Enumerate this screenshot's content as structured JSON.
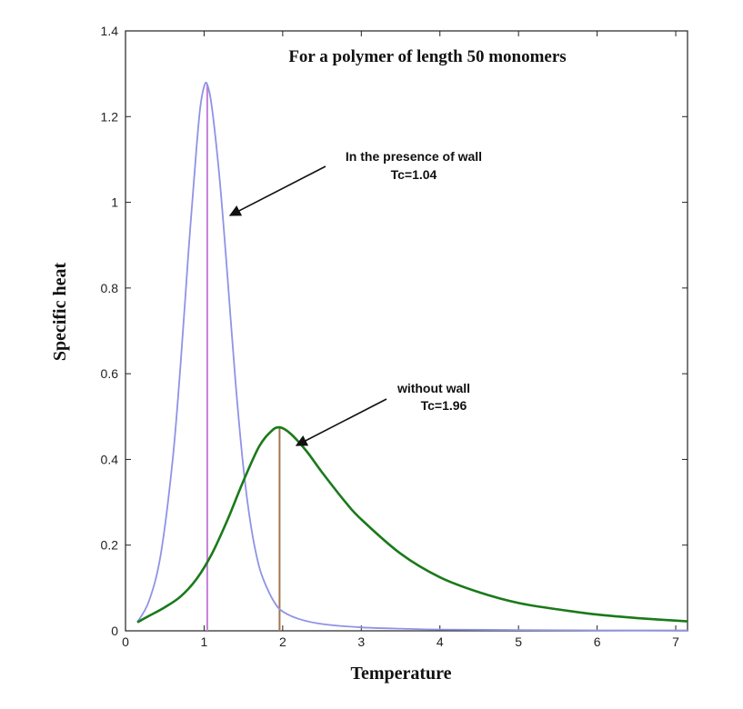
{
  "chart_data": {
    "type": "line",
    "title": "For a polymer of length 50 monomers",
    "xlabel": "Temperature",
    "ylabel": "Specific heat",
    "xlim": [
      0,
      7.15
    ],
    "ylim": [
      0,
      1.4
    ],
    "xticks": [
      "0",
      "1",
      "2",
      "3",
      "4",
      "5",
      "6",
      "7"
    ],
    "yticks": [
      "0",
      "0.2",
      "0.4",
      "0.6",
      "0.8",
      "1",
      "1.2",
      "1.4"
    ],
    "grid": false,
    "series": [
      {
        "color": "#8f93e6",
        "x": [
          0.15,
          0.3,
          0.45,
          0.6,
          0.7,
          0.8,
          0.9,
          0.95,
          1.0,
          1.04,
          1.1,
          1.2,
          1.3,
          1.4,
          1.5,
          1.6,
          1.7,
          1.8,
          1.9,
          2.0,
          2.2,
          2.5,
          3.0,
          3.5,
          4.0,
          5.0,
          6.0,
          7.15
        ],
        "values": [
          0.02,
          0.07,
          0.18,
          0.4,
          0.62,
          0.88,
          1.12,
          1.22,
          1.27,
          1.275,
          1.22,
          1.05,
          0.82,
          0.58,
          0.38,
          0.24,
          0.15,
          0.1,
          0.065,
          0.045,
          0.028,
          0.016,
          0.008,
          0.005,
          0.003,
          0.002,
          0.001,
          0.001
        ]
      },
      {
        "color": "#1a7a1a",
        "x": [
          0.15,
          0.3,
          0.5,
          0.7,
          0.9,
          1.1,
          1.3,
          1.5,
          1.7,
          1.85,
          1.96,
          2.1,
          2.3,
          2.5,
          2.8,
          3.0,
          3.5,
          4.0,
          4.5,
          5.0,
          5.5,
          6.0,
          6.5,
          7.15
        ],
        "values": [
          0.02,
          0.035,
          0.055,
          0.08,
          0.12,
          0.18,
          0.26,
          0.35,
          0.43,
          0.465,
          0.475,
          0.46,
          0.42,
          0.37,
          0.3,
          0.26,
          0.18,
          0.125,
          0.09,
          0.065,
          0.05,
          0.038,
          0.03,
          0.022
        ]
      }
    ],
    "markers": [
      {
        "x": 1.04,
        "value": 1.275,
        "color": "#c57fd8"
      },
      {
        "x": 1.96,
        "value": 0.475,
        "color": "#a07850"
      }
    ],
    "annotations": [
      {
        "line1": "In the presence of wall",
        "line2": "Tc=1.04"
      },
      {
        "line1": "without wall",
        "line2": "Tc=1.96"
      }
    ]
  }
}
